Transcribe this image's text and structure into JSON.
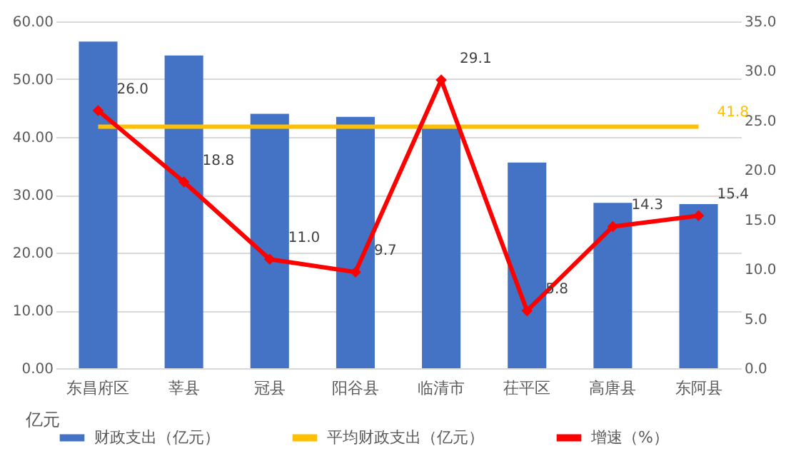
{
  "chart_data": {
    "type": "bar",
    "categories": [
      "东昌府区",
      "莘县",
      "冠县",
      "阳谷县",
      "临清市",
      "茌平区",
      "高唐县",
      "东阿县"
    ],
    "series": [
      {
        "name": "财政支出（亿元）",
        "color": "#4472c4",
        "values": [
          56.5,
          54.1,
          44.0,
          43.5,
          41.5,
          35.6,
          28.6,
          28.4
        ]
      },
      {
        "name": "平均财政支出（亿元）",
        "type": "line",
        "color": "#ffc000",
        "values": [
          41.8,
          41.8,
          41.8,
          41.8,
          41.8,
          41.8,
          41.8,
          41.8
        ],
        "value_labels": [
          null,
          null,
          null,
          null,
          null,
          null,
          null,
          "41.8"
        ]
      },
      {
        "name": "增速（%）",
        "type": "line",
        "axis": "y2",
        "color": "#ff0000",
        "marker": "diamond",
        "values": [
          26.0,
          18.8,
          11.0,
          9.7,
          29.1,
          5.8,
          14.3,
          15.4
        ],
        "value_labels": [
          "26.0",
          "18.8",
          "11.0",
          "9.7",
          "29.1",
          "5.8",
          "14.3",
          "15.4"
        ]
      }
    ],
    "ylim": [
      0,
      60
    ],
    "yticks": [
      {
        "value": 0,
        "label": "0.00"
      },
      {
        "value": 10,
        "label": "10.00"
      },
      {
        "value": 20,
        "label": "20.00"
      },
      {
        "value": 30,
        "label": "30.00"
      },
      {
        "value": 40,
        "label": "40.00"
      },
      {
        "value": 50,
        "label": "50.00"
      },
      {
        "value": 60,
        "label": "60.00"
      }
    ],
    "y2lim": [
      0,
      35
    ],
    "y2ticks": [
      {
        "value": 0,
        "label": "0.0"
      },
      {
        "value": 5,
        "label": "5.0"
      },
      {
        "value": 10,
        "label": "10.0"
      },
      {
        "value": 15,
        "label": "15.0"
      },
      {
        "value": 20,
        "label": "20.0"
      },
      {
        "value": 25,
        "label": "25.0"
      },
      {
        "value": 30,
        "label": "30.0"
      },
      {
        "value": 35,
        "label": "35.0"
      }
    ],
    "grid": "y",
    "legend": "bottom",
    "annotations": [
      "亿元"
    ]
  }
}
